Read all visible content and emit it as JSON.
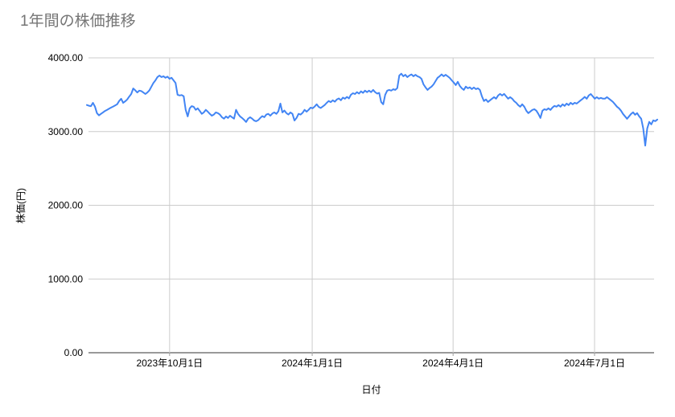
{
  "chart_data": {
    "type": "line",
    "title": "1年間の株価推移",
    "xlabel": "日付",
    "ylabel": "株価(円)",
    "ylim": [
      0,
      4000
    ],
    "grid": true,
    "legend": "none",
    "y_ticks": [
      {
        "label": "4000.00",
        "value": 4000
      },
      {
        "label": "3000.00",
        "value": 3000
      },
      {
        "label": "2000.00",
        "value": 2000
      },
      {
        "label": "1000.00",
        "value": 1000
      },
      {
        "label": "0.00",
        "value": 0
      }
    ],
    "x_ticks": [
      {
        "label": "2023年10月1日",
        "f": 0.145
      },
      {
        "label": "2024年1月1日",
        "f": 0.395
      },
      {
        "label": "2024年4月1日",
        "f": 0.642
      },
      {
        "label": "2024年7月1日",
        "f": 0.89
      }
    ],
    "series": [
      {
        "name": "株価",
        "values": [
          3360,
          3350,
          3345,
          3390,
          3340,
          3250,
          3220,
          3240,
          3260,
          3280,
          3295,
          3310,
          3325,
          3340,
          3355,
          3370,
          3415,
          3445,
          3390,
          3410,
          3435,
          3475,
          3510,
          3585,
          3560,
          3530,
          3555,
          3550,
          3530,
          3510,
          3530,
          3560,
          3610,
          3660,
          3695,
          3740,
          3760,
          3740,
          3750,
          3730,
          3745,
          3715,
          3730,
          3695,
          3660,
          3500,
          3490,
          3495,
          3480,
          3295,
          3205,
          3315,
          3345,
          3335,
          3295,
          3315,
          3280,
          3240,
          3260,
          3295,
          3270,
          3240,
          3215,
          3230,
          3260,
          3250,
          3230,
          3195,
          3175,
          3205,
          3185,
          3215,
          3195,
          3175,
          3295,
          3240,
          3205,
          3185,
          3160,
          3130,
          3175,
          3195,
          3175,
          3150,
          3140,
          3155,
          3185,
          3210,
          3195,
          3230,
          3240,
          3215,
          3245,
          3260,
          3240,
          3275,
          3380,
          3260,
          3285,
          3250,
          3230,
          3260,
          3240,
          3150,
          3185,
          3240,
          3230,
          3255,
          3295,
          3270,
          3295,
          3325,
          3315,
          3340,
          3370,
          3335,
          3320,
          3340,
          3360,
          3390,
          3415,
          3400,
          3425,
          3405,
          3435,
          3450,
          3425,
          3460,
          3445,
          3470,
          3450,
          3500,
          3520,
          3510,
          3535,
          3515,
          3545,
          3525,
          3555,
          3535,
          3555,
          3535,
          3565,
          3535,
          3515,
          3525,
          3400,
          3370,
          3500,
          3555,
          3565,
          3555,
          3575,
          3565,
          3590,
          3760,
          3785,
          3750,
          3770,
          3740,
          3760,
          3775,
          3750,
          3770,
          3750,
          3740,
          3715,
          3640,
          3600,
          3565,
          3590,
          3610,
          3640,
          3685,
          3730,
          3750,
          3775,
          3750,
          3770,
          3750,
          3728,
          3695,
          3665,
          3630,
          3675,
          3620,
          3587,
          3565,
          3610,
          3587,
          3600,
          3576,
          3598,
          3576,
          3587,
          3565,
          3478,
          3415,
          3435,
          3402,
          3424,
          3446,
          3467,
          3446,
          3489,
          3511,
          3489,
          3511,
          3478,
          3446,
          3467,
          3446,
          3413,
          3391,
          3359,
          3337,
          3370,
          3337,
          3283,
          3250,
          3272,
          3294,
          3304,
          3283,
          3239,
          3185,
          3283,
          3304,
          3294,
          3315,
          3294,
          3326,
          3348,
          3337,
          3359,
          3337,
          3370,
          3348,
          3380,
          3359,
          3391,
          3370,
          3391,
          3380,
          3402,
          3425,
          3445,
          3470,
          3445,
          3490,
          3510,
          3478,
          3446,
          3467,
          3446,
          3457,
          3446,
          3446,
          3467,
          3446,
          3424,
          3402,
          3370,
          3337,
          3315,
          3283,
          3239,
          3207,
          3174,
          3207,
          3239,
          3261,
          3228,
          3250,
          3207,
          3174,
          3043,
          2810,
          3043,
          3131,
          3098,
          3152,
          3141,
          3163
        ]
      }
    ],
    "colors": {
      "line": "#4285f4",
      "grid": "#cccccc",
      "axis_line": "#333333",
      "tick_mark": "#9e9e9e",
      "tick_text": "#000000",
      "title_text": "#757575",
      "background": "#ffffff"
    }
  }
}
